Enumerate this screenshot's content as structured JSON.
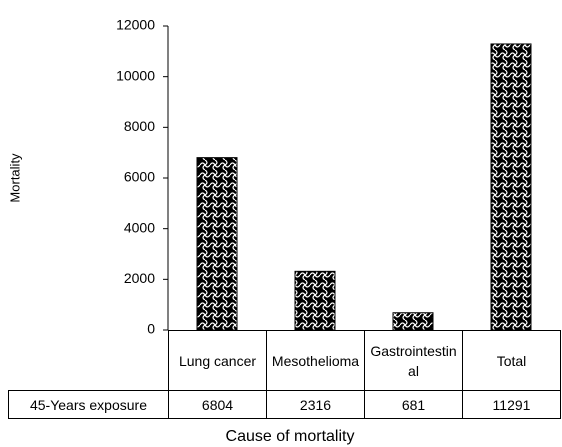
{
  "chart_data": {
    "type": "bar",
    "y_label": "Mortality",
    "x_label": "Cause of mortality",
    "categories": [
      "Lung cancer",
      "Mesothelioma",
      "Gastrointestinal",
      "Total"
    ],
    "series": [
      {
        "name": "45-Years exposure",
        "color": "#000000",
        "values": [
          6804,
          2316,
          681,
          11291
        ]
      }
    ],
    "ylim": [
      0,
      12000
    ],
    "yticks": [
      0,
      2000,
      4000,
      6000,
      8000,
      10000,
      12000
    ]
  }
}
